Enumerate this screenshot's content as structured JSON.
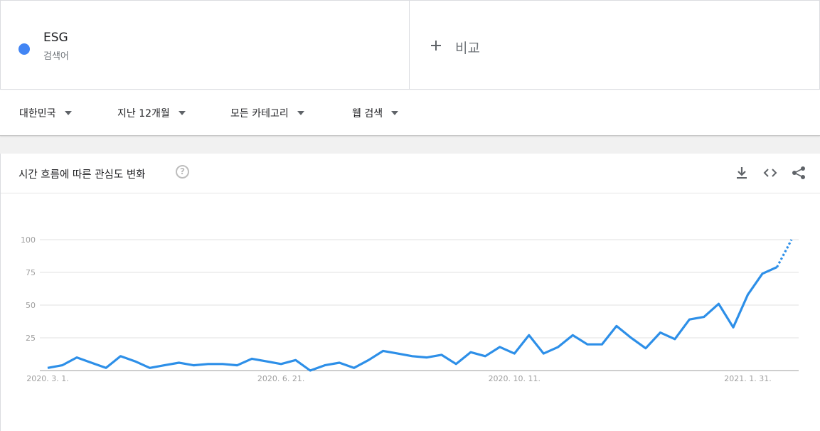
{
  "search_term": {
    "name": "ESG",
    "type": "검색어",
    "color": "#4285f4"
  },
  "compare": {
    "label": "비교"
  },
  "filters": [
    {
      "label": "대한민국"
    },
    {
      "label": "지난 12개월"
    },
    {
      "label": "모든 카테고리"
    },
    {
      "label": "웹 검색"
    }
  ],
  "panel": {
    "title": "시간 흐름에 따른 관심도 변화",
    "help_icon": "question-circle-icon",
    "tools": [
      "download-icon",
      "embed-code-icon",
      "share-icon"
    ]
  },
  "chart_data": {
    "type": "line",
    "title": "",
    "xlabel": "",
    "ylabel": "",
    "ylim": [
      0,
      100
    ],
    "yticks": [
      25,
      50,
      75,
      100
    ],
    "x_tick_labels": [
      "2020. 3. 1.",
      "2020. 6. 21.",
      "2020. 10. 11.",
      "2021. 1. 31."
    ],
    "x_tick_index": [
      0,
      16,
      32,
      48
    ],
    "grid": true,
    "line_color": "#2d8fe8",
    "partial_last_segment": true,
    "series": [
      {
        "values": [
          2,
          4,
          10,
          6,
          2,
          11,
          7,
          2,
          4,
          6,
          4,
          5,
          5,
          4,
          9,
          7,
          5,
          8,
          0,
          4,
          6,
          2,
          8,
          15,
          13,
          11,
          10,
          12,
          5,
          14,
          11,
          18,
          13,
          27,
          13,
          18,
          27,
          20,
          20,
          34,
          25,
          17,
          29,
          24,
          39,
          41,
          51,
          33,
          58,
          74,
          79,
          100
        ]
      }
    ]
  }
}
